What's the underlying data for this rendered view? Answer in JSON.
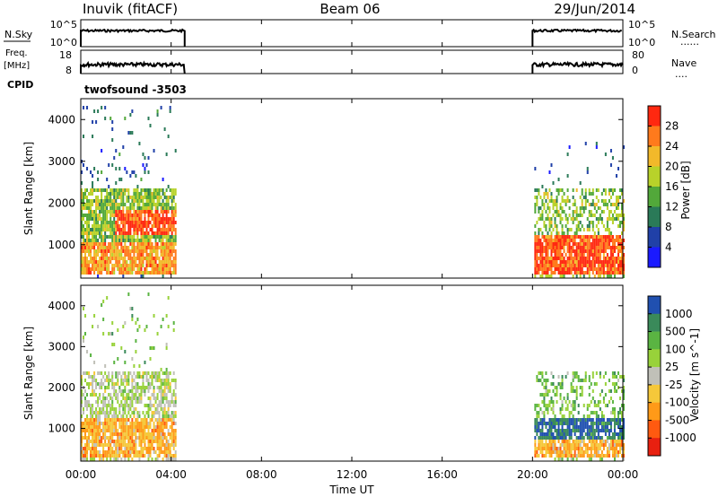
{
  "header": {
    "station": "Inuvik (fitACF)",
    "beam": "Beam 06",
    "date": "29/Jun/2014"
  },
  "panels": {
    "nsky": {
      "label": "N.Sky",
      "ticks_left": [
        "10^5",
        "10^0"
      ],
      "ticks_right": [
        "10^5",
        "10^0"
      ],
      "right_label": "N.Search",
      "right_marker": "......"
    },
    "freq": {
      "label_line1": "Freq.",
      "label_line2": "[MHz]",
      "ticks_left": [
        "18",
        "8"
      ],
      "ticks_right": [
        "80",
        "0"
      ],
      "right_label": "Nave",
      "right_marker": "....",
      "cpid_label": "CPID",
      "cpid_value": "twofsound -3503"
    }
  },
  "chart_data": [
    {
      "type": "heatmap",
      "name": "power",
      "ylabel": "Slant Range [km]",
      "yticks": [
        "1000",
        "2000",
        "3000",
        "4000"
      ],
      "colorbar_label": "Power [dB]",
      "colorbar_ticks": [
        "4",
        "8",
        "12",
        "16",
        "20",
        "24",
        "28"
      ],
      "colors": [
        "#1a1aff",
        "#2040a8",
        "#2a7a58",
        "#52a83a",
        "#b8d22a",
        "#f2b92a",
        "#ff7a1c",
        "#ff2810"
      ]
    },
    {
      "type": "heatmap",
      "name": "velocity",
      "ylabel": "Slant Range [km]",
      "yticks": [
        "1000",
        "2000",
        "3000",
        "4000"
      ],
      "colorbar_label": "Velocity [m s^-1]",
      "colorbar_ticks": [
        "1000",
        "500",
        "100",
        "25",
        "-25",
        "-100",
        "-500",
        "-1000"
      ],
      "colors": [
        "#2050b0",
        "#3a8a5a",
        "#5ab442",
        "#98d23a",
        "#c0c0b8",
        "#f5c83a",
        "#ff9a18",
        "#ff5a10",
        "#e82010"
      ]
    }
  ],
  "xaxis": {
    "label": "Time UT",
    "ticks": [
      "00:00",
      "04:00",
      "08:00",
      "12:00",
      "16:00",
      "20:00",
      "00:00"
    ]
  }
}
